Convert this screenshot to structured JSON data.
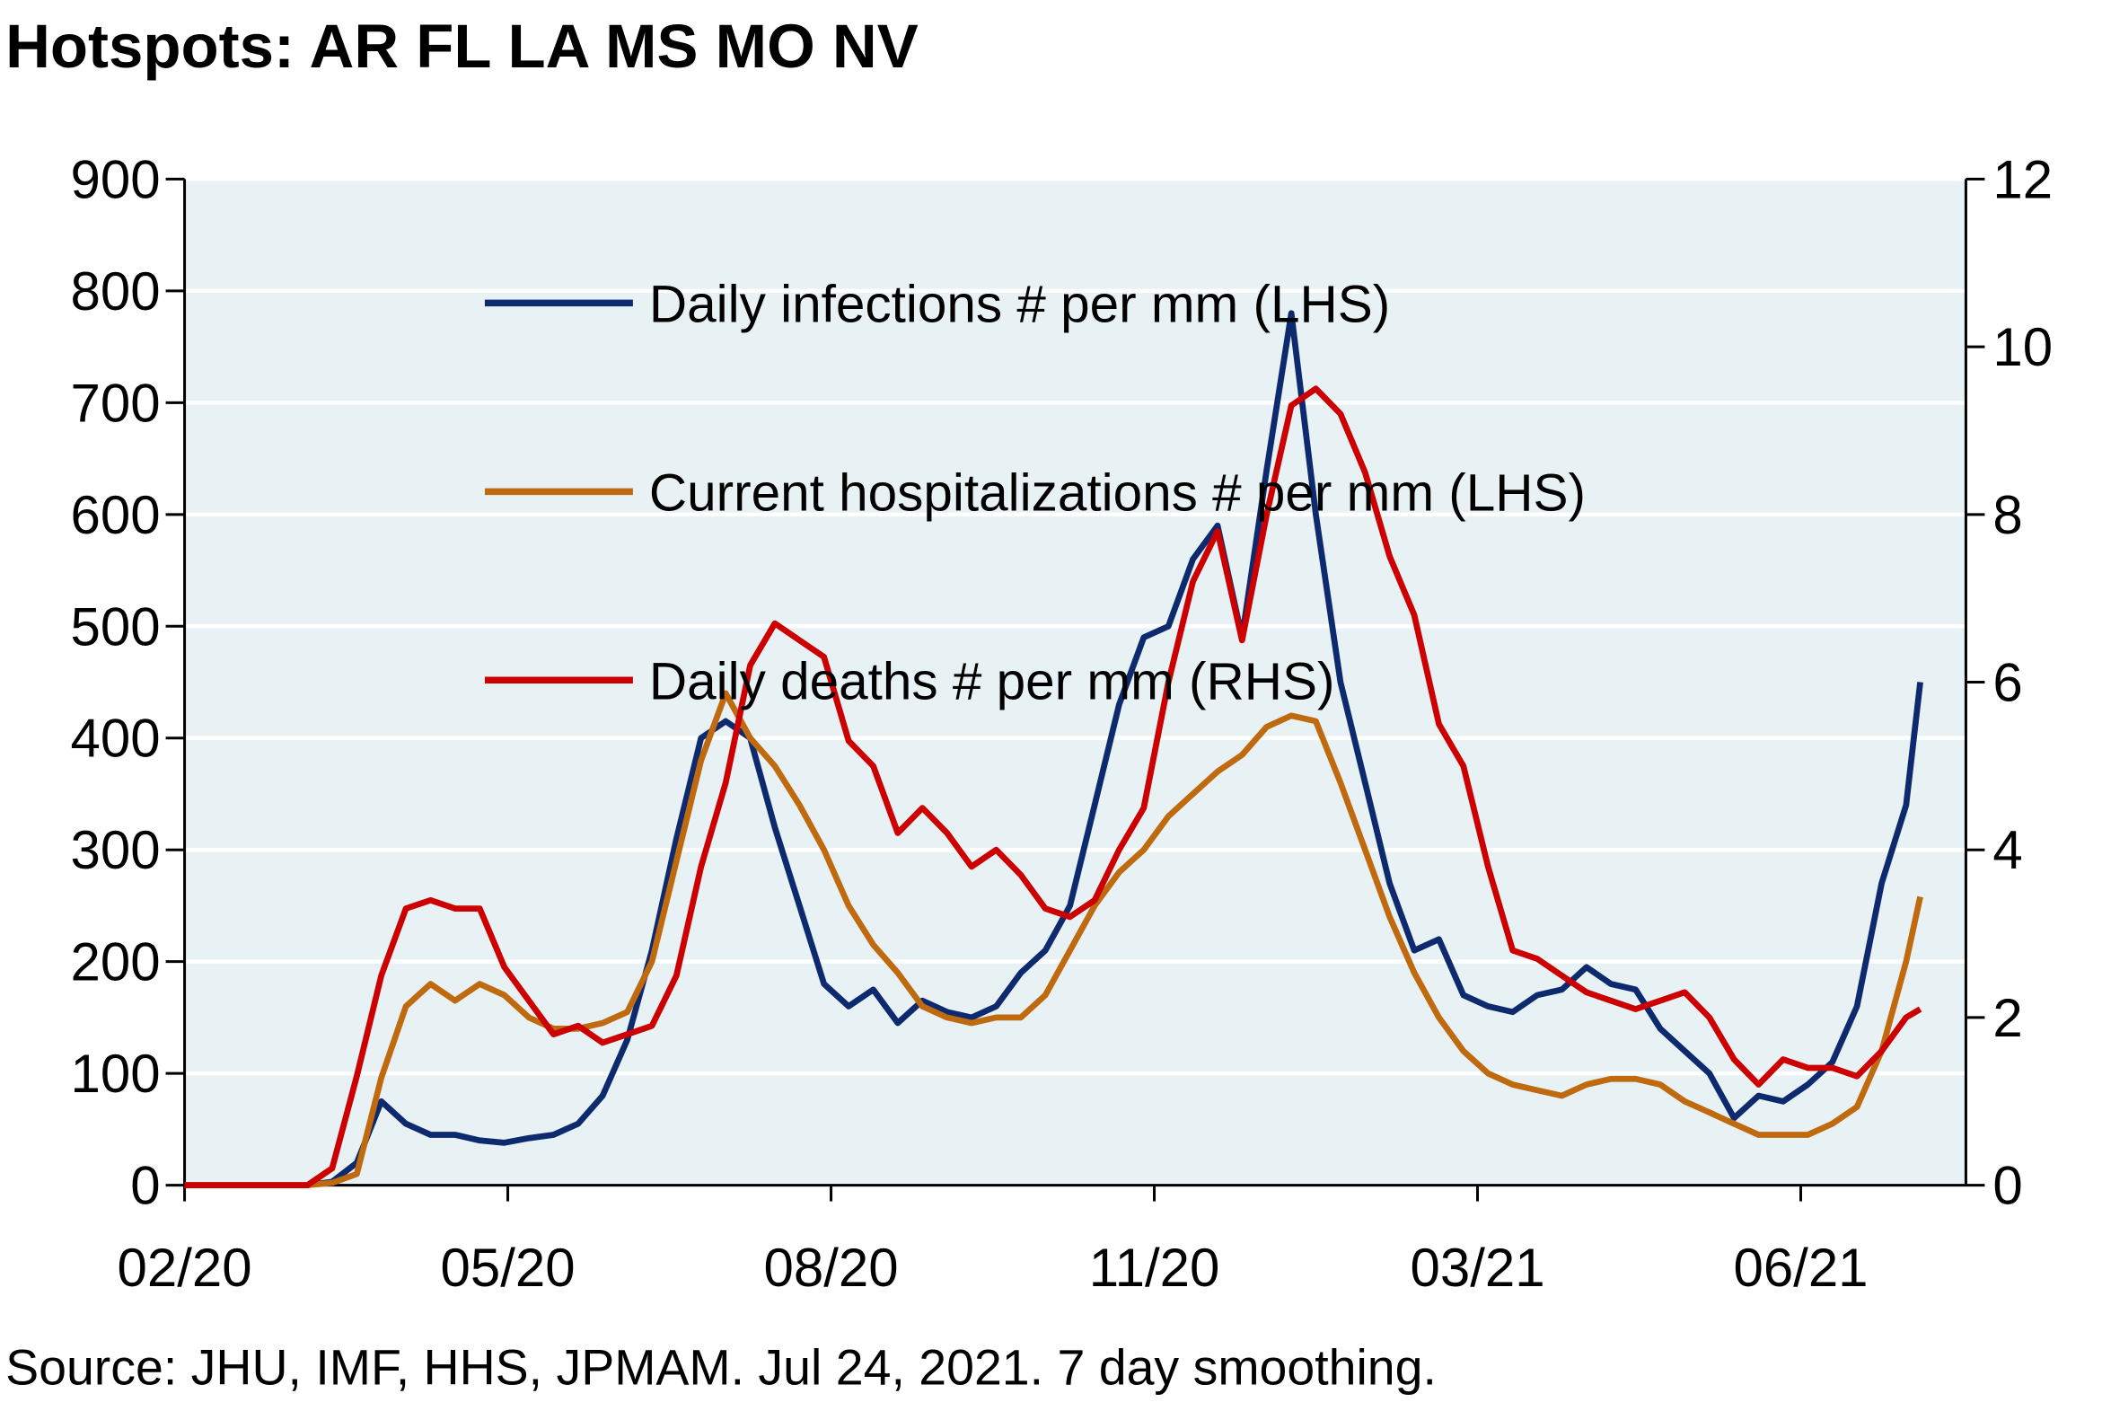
{
  "chart_data": {
    "type": "line",
    "title": "Hotspots: AR FL LA MS MO NV",
    "source": "Source: JHU, IMF, HHS, JPMAM. Jul 24, 2021. 7 day smoothing.",
    "x": [
      0,
      7,
      14,
      21,
      28,
      35,
      42,
      49,
      56,
      63,
      70,
      77,
      84,
      91,
      98,
      105,
      112,
      119,
      126,
      133,
      140,
      147,
      154,
      161,
      168,
      175,
      182,
      189,
      196,
      203,
      210,
      217,
      224,
      231,
      238,
      245,
      252,
      259,
      266,
      273,
      280,
      287,
      294,
      301,
      308,
      315,
      322,
      329,
      336,
      343,
      350,
      357,
      364,
      371,
      378,
      385,
      392,
      399,
      406,
      413,
      420,
      427,
      434,
      441,
      448,
      455,
      462,
      469,
      476,
      483,
      490,
      494
    ],
    "xlim": [
      0,
      507
    ],
    "xticks": [
      {
        "value": 0,
        "label": "02/20"
      },
      {
        "value": 92,
        "label": "05/20"
      },
      {
        "value": 184,
        "label": "08/20"
      },
      {
        "value": 276,
        "label": "11/20"
      },
      {
        "value": 368,
        "label": "03/21"
      },
      {
        "value": 460,
        "label": "06/21"
      }
    ],
    "ylim": [
      0,
      900
    ],
    "yticks": [
      0,
      100,
      200,
      300,
      400,
      500,
      600,
      700,
      800,
      900
    ],
    "y2lim": [
      0,
      12
    ],
    "y2ticks": [
      0,
      2,
      4,
      6,
      8,
      10,
      12
    ],
    "grid": true,
    "series": [
      {
        "name": "Daily infections # per mm (LHS)",
        "color": "#0d2a6e",
        "values": [
          0,
          0,
          0,
          0,
          0,
          0,
          3,
          20,
          75,
          55,
          45,
          45,
          40,
          38,
          42,
          45,
          55,
          80,
          130,
          210,
          310,
          400,
          415,
          400,
          320,
          250,
          180,
          160,
          175,
          145,
          165,
          155,
          150,
          160,
          190,
          210,
          250,
          340,
          430,
          490,
          500,
          560,
          590,
          490,
          640,
          780,
          600,
          450,
          360,
          270,
          210,
          220,
          170,
          160,
          155,
          170,
          175,
          195,
          180,
          175,
          140,
          120,
          100,
          60,
          80,
          75,
          90,
          110,
          160,
          270,
          340,
          450
        ]
      },
      {
        "name": "Current hospitalizations # per mm (LHS)",
        "color": "#c06a10",
        "values": [
          0,
          0,
          0,
          0,
          0,
          0,
          2,
          10,
          96,
          160,
          180,
          165,
          180,
          170,
          150,
          140,
          140,
          145,
          155,
          200,
          290,
          380,
          440,
          400,
          375,
          340,
          300,
          250,
          215,
          190,
          160,
          150,
          145,
          150,
          150,
          170,
          210,
          250,
          280,
          300,
          330,
          350,
          370,
          385,
          410,
          420,
          415,
          360,
          300,
          240,
          190,
          150,
          120,
          100,
          90,
          85,
          80,
          90,
          95,
          95,
          90,
          75,
          65,
          55,
          45,
          45,
          45,
          55,
          70,
          120,
          200,
          258
        ]
      },
      {
        "name": "Daily deaths # per mm (RHS)",
        "color": "#cc0000",
        "axis": "y2",
        "values": [
          0,
          0,
          0,
          0,
          0,
          0,
          0.2,
          1.3,
          2.5,
          3.3,
          3.4,
          3.3,
          3.3,
          2.6,
          2.2,
          1.8,
          1.9,
          1.7,
          1.8,
          1.9,
          2.5,
          3.8,
          4.8,
          6.2,
          6.7,
          6.5,
          6.3,
          5.3,
          5.0,
          4.2,
          4.5,
          4.2,
          3.8,
          4.0,
          3.7,
          3.3,
          3.2,
          3.4,
          4.0,
          4.5,
          6.0,
          7.2,
          7.8,
          6.5,
          8.0,
          9.3,
          9.5,
          9.2,
          8.5,
          7.5,
          6.8,
          5.5,
          5.0,
          3.8,
          2.8,
          2.7,
          2.5,
          2.3,
          2.2,
          2.1,
          2.2,
          2.3,
          2.0,
          1.5,
          1.2,
          1.5,
          1.4,
          1.4,
          1.3,
          1.6,
          2.0,
          2.1
        ]
      }
    ]
  }
}
